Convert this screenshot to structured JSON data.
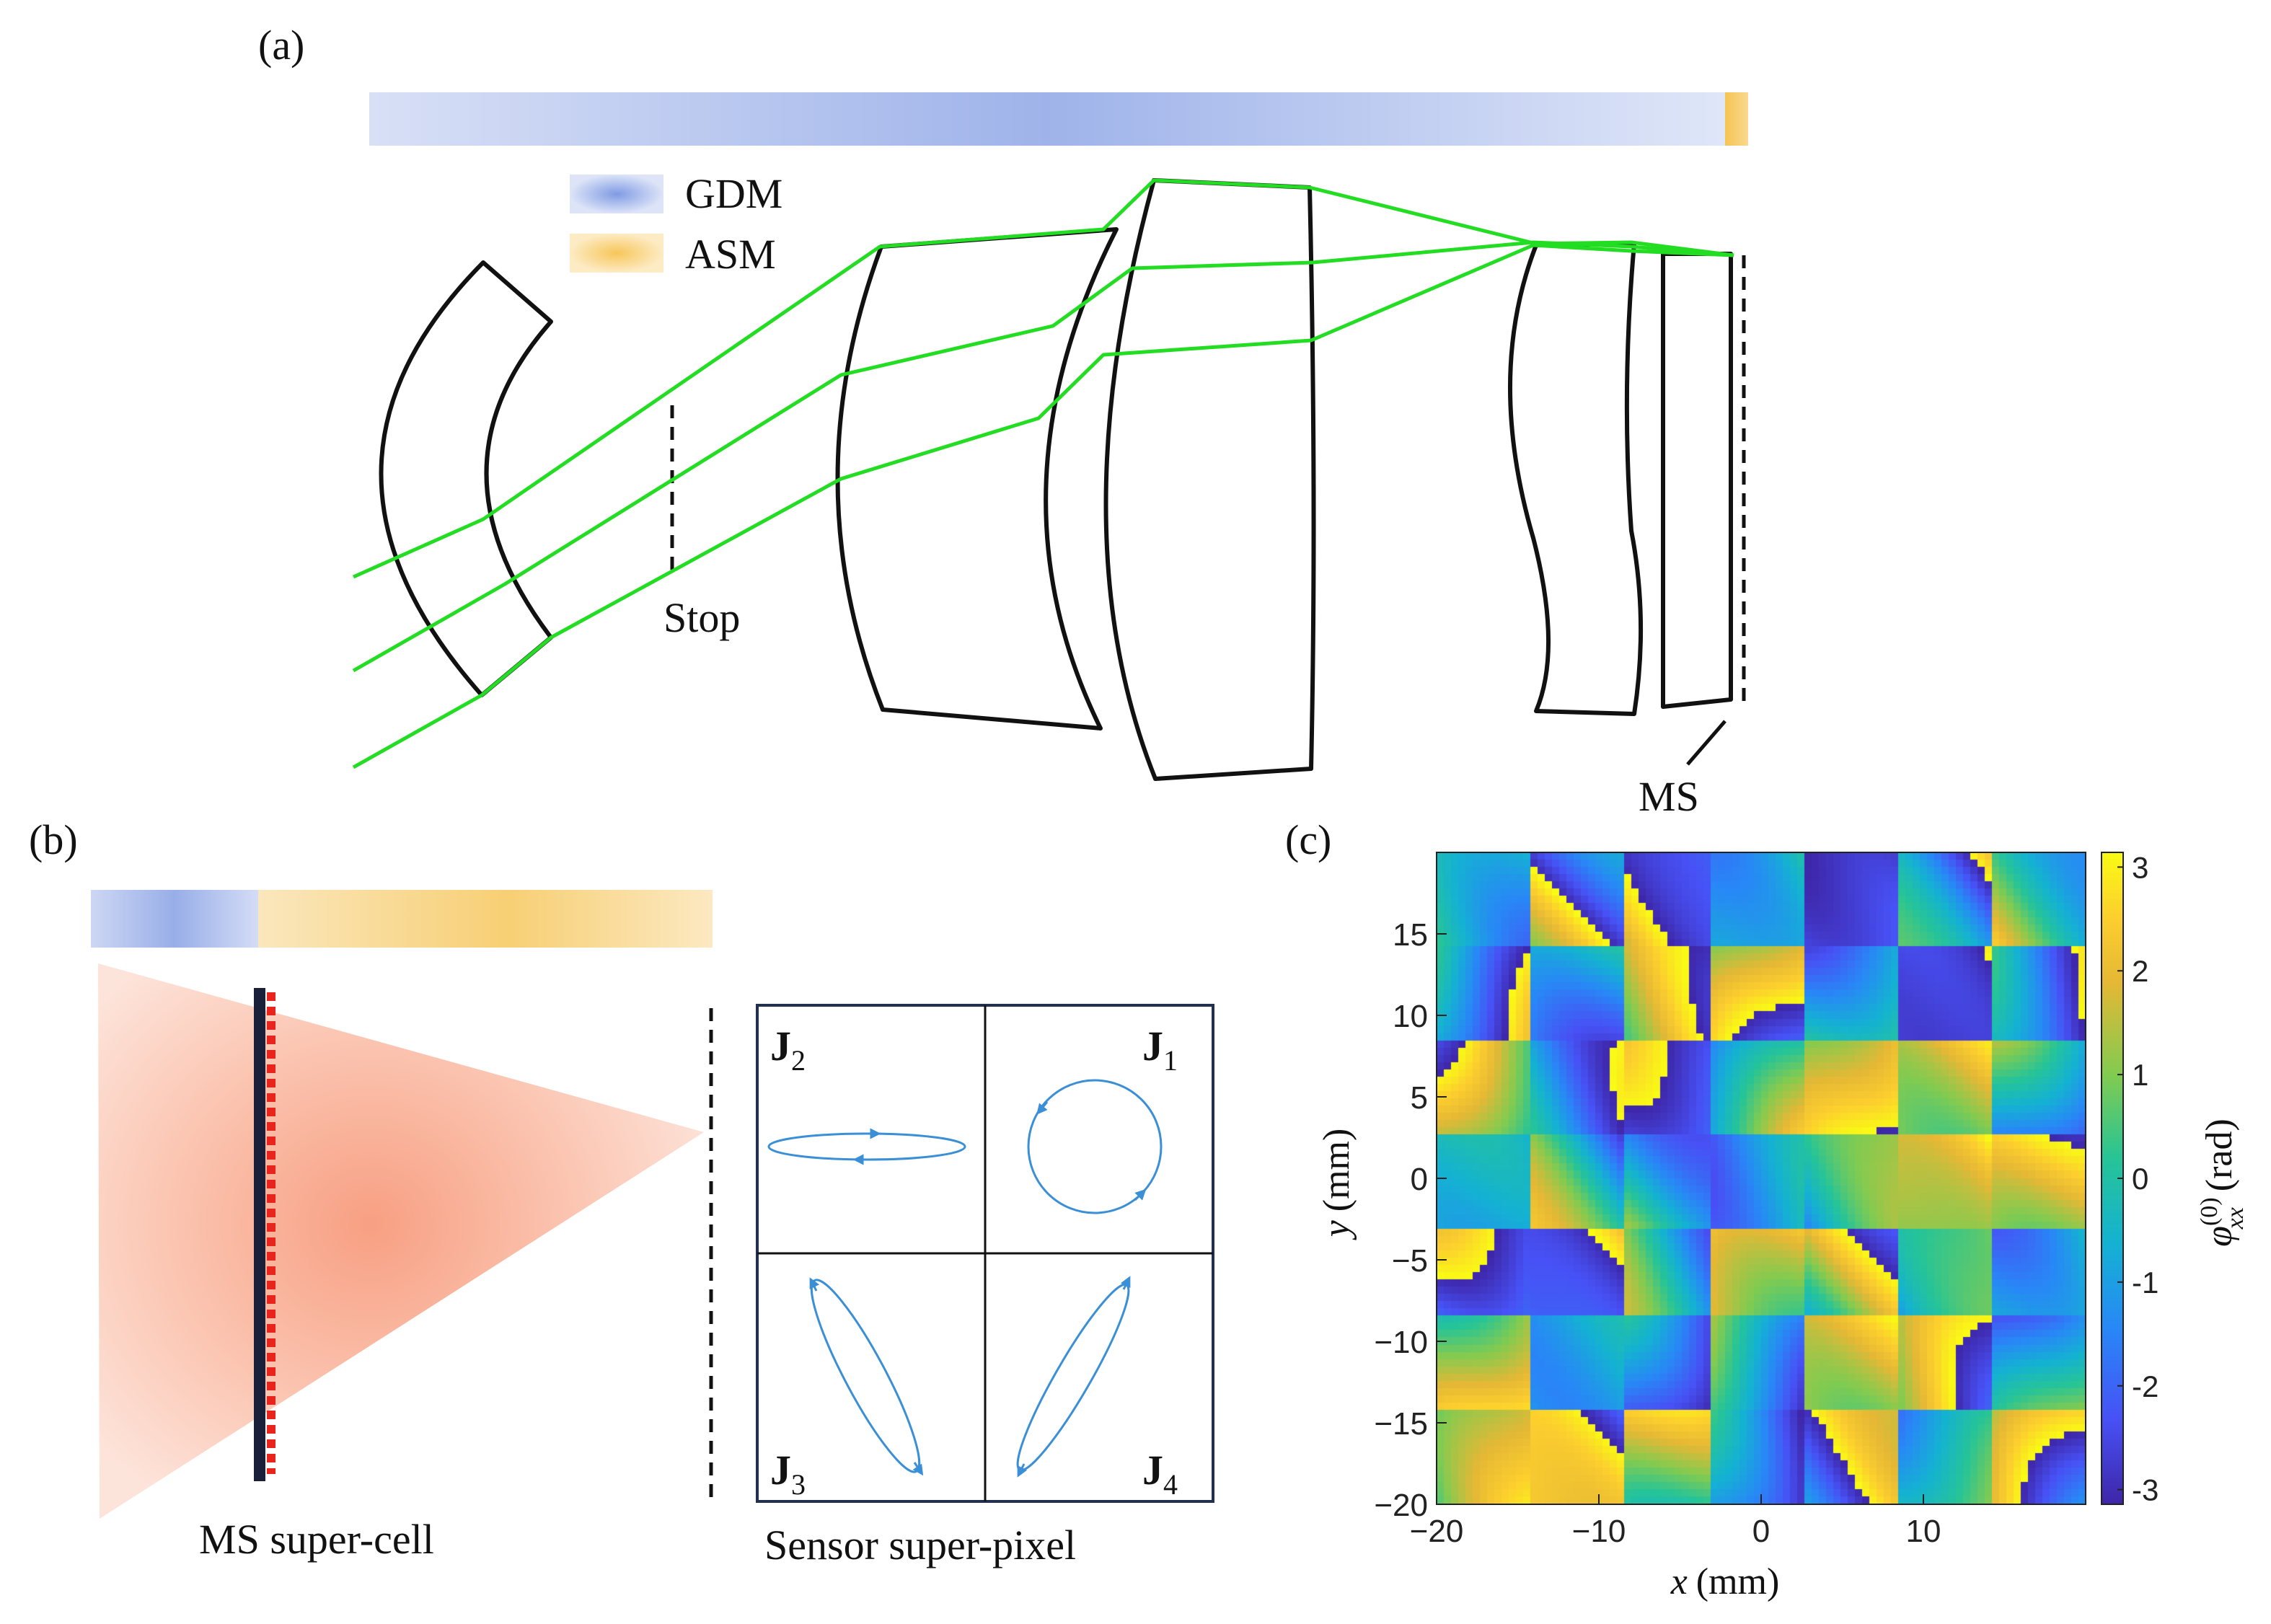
{
  "panels": {
    "a": {
      "label": "(a)",
      "legend": [
        {
          "key": "gdm",
          "label": "GDM",
          "color": "#7f9be3"
        },
        {
          "key": "asm",
          "label": "ASM",
          "color": "#f7c65a"
        }
      ],
      "stop_label": "Stop",
      "ms_label": "MS",
      "ray_color": "#22dd22"
    },
    "b": {
      "label": "(b)",
      "supercell_label": "MS super-cell",
      "superpixel_label": "Sensor super-pixel",
      "jones": [
        {
          "key": "J2",
          "letter": "J",
          "sub": "2",
          "shape": "horizontal-ellipse"
        },
        {
          "key": "J1",
          "letter": "J",
          "sub": "1",
          "shape": "circle"
        },
        {
          "key": "J3",
          "letter": "J",
          "sub": "3",
          "shape": "tilted-ellipse-left"
        },
        {
          "key": "J4",
          "letter": "J",
          "sub": "4",
          "shape": "tilted-ellipse-right"
        }
      ],
      "ellipse_color": "#3a8fd6"
    },
    "c": {
      "label": "(c)",
      "x_axis_label_var": "x",
      "x_axis_label_unit": "(mm)",
      "y_axis_label_var": "y",
      "y_axis_label_unit": "(mm)",
      "colorbar_label_sym": "φ",
      "colorbar_label_sup": "(0)",
      "colorbar_label_sub": "xx",
      "colorbar_label_unit": "(rad)"
    }
  },
  "chart_data": {
    "type": "heatmap",
    "title": "",
    "xlabel": "x (mm)",
    "ylabel": "y (mm)",
    "xlim": [
      -20,
      20
    ],
    "ylim": [
      -20,
      20
    ],
    "x_ticks": [
      -20,
      -10,
      0,
      10
    ],
    "x_tick_labels": [
      "−20",
      "−10",
      "0",
      "10"
    ],
    "y_ticks": [
      15,
      10,
      5,
      0,
      -5,
      -10,
      -15,
      -20
    ],
    "y_tick_labels": [
      "15",
      "10",
      "5",
      "0",
      "−5",
      "−10",
      "−15",
      "−20"
    ],
    "colorbar_label": "φxx(0) (rad)",
    "colorbar_range": [
      -3.1416,
      3.1416
    ],
    "colorbar_ticks": [
      3,
      2,
      1,
      0,
      -1,
      -2,
      -3
    ],
    "colorbar_tick_labels": [
      "3",
      "2",
      "1",
      "0",
      "-1",
      "-2",
      "-3"
    ],
    "colormap": "parula",
    "grid": false
  }
}
